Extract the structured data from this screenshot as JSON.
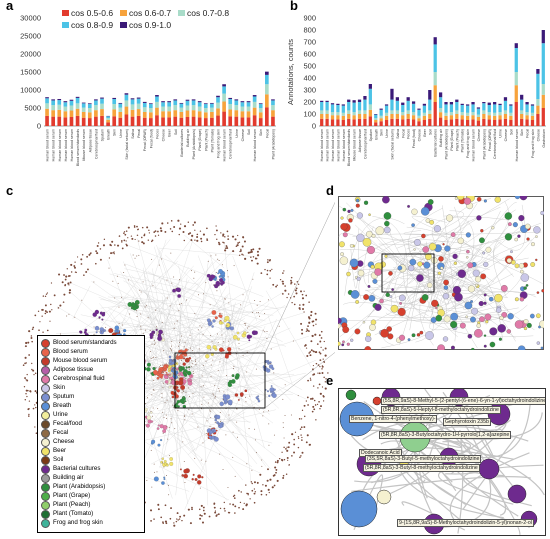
{
  "panels": {
    "a": "a",
    "b": "b",
    "c": "c",
    "d": "d",
    "e": "e"
  },
  "chart_a": {
    "legend": [
      {
        "label": "cos 0.5-0.6",
        "color": "#e23b2e"
      },
      {
        "label": "cos 0.6-0.7",
        "color": "#f7a33c"
      },
      {
        "label": "cos 0.7-0.8",
        "color": "#a9dcc9"
      },
      {
        "label": "cos 0.8-0.9",
        "color": "#4cc3e6"
      },
      {
        "label": "cos 0.9-1.0",
        "color": "#3b1a78"
      }
    ],
    "yticks": [
      "0",
      "5000",
      "10000",
      "15000",
      "20000",
      "25000",
      "30000"
    ]
  },
  "chart_b": {
    "ylabel": "Annotations, counts",
    "yticks": [
      "0",
      "100",
      "200",
      "300",
      "400",
      "500",
      "600",
      "700",
      "800",
      "900"
    ]
  },
  "chart_data": [
    {
      "type": "bar",
      "ylim": [
        0,
        30000
      ],
      "categories": [
        "Human blood serum",
        "Human blood serum",
        "Human blood serum",
        "Human blood serum",
        "Human blood serum",
        "Blood serum/standards",
        "Mouse blood serum",
        "Adipose tissue",
        "Cerebrospinal fluid",
        "Sputum",
        "Breath",
        "Skin",
        "Urine",
        "Skin (facial sebum)",
        "Saliva",
        "Fecal",
        "Fecal (OPAR)",
        "Fecal (food)",
        "Feces",
        "Cheese",
        "Beer",
        "Soil",
        "Bacterial cultures",
        "Building air",
        "Plant (Arabidopsis)",
        "Plant (Grape)",
        "Plant (Peach)",
        "Plant (Tomato)",
        "Frog and frog skin",
        "Human blood serum",
        "Cerebrospinal fluid",
        "Urine",
        "Cheese",
        "Soil",
        "Human blood serum",
        "Skin",
        "Fecal",
        "Plant (Arabidopsis)"
      ],
      "series": [
        {
          "name": "cos 0.5-0.6",
          "values": [
            2800,
            2600,
            2600,
            2400,
            2500,
            2800,
            2300,
            2200,
            2600,
            2800,
            1000,
            2700,
            2300,
            3200,
            2600,
            2800,
            2300,
            2200,
            3000,
            2400,
            2400,
            2600,
            2300,
            2500,
            2600,
            2400,
            2200,
            2300,
            2900,
            4000,
            2700,
            2600,
            2400,
            2400,
            3000,
            2200,
            5200,
            2600
          ]
        },
        {
          "name": "cos 0.6-0.7",
          "values": [
            2000,
            1800,
            1900,
            1700,
            1800,
            2000,
            1600,
            1600,
            1800,
            1900,
            700,
            1900,
            1600,
            2200,
            1900,
            1900,
            1600,
            1600,
            2100,
            1700,
            1700,
            1800,
            1600,
            1800,
            1800,
            1700,
            1600,
            1600,
            2000,
            2800,
            1900,
            1800,
            1700,
            1700,
            2100,
            1600,
            3600,
            1800
          ]
        },
        {
          "name": "cos 0.7-0.8",
          "values": [
            1500,
            1400,
            1400,
            1300,
            1400,
            1500,
            1200,
            1200,
            1400,
            1500,
            500,
            1500,
            1200,
            1700,
            1500,
            1500,
            1300,
            1200,
            1600,
            1300,
            1300,
            1400,
            1200,
            1400,
            1400,
            1300,
            1200,
            1200,
            1600,
            2200,
            1500,
            1400,
            1300,
            1300,
            1600,
            1200,
            2800,
            1400
          ]
        },
        {
          "name": "cos 0.8-0.9",
          "values": [
            1400,
            1300,
            1300,
            1200,
            1300,
            1500,
            1200,
            1100,
            1300,
            1400,
            500,
            1400,
            1100,
            1600,
            1400,
            1400,
            1200,
            1100,
            1500,
            1200,
            1200,
            1300,
            1100,
            1300,
            1300,
            1200,
            1100,
            1100,
            1500,
            2000,
            1400,
            1300,
            1200,
            1200,
            1500,
            1100,
            2600,
            1300
          ]
        },
        {
          "name": "cos 0.9-1.0",
          "values": [
            300,
            300,
            300,
            300,
            300,
            300,
            200,
            200,
            300,
            300,
            100,
            300,
            200,
            400,
            300,
            300,
            300,
            200,
            400,
            300,
            300,
            300,
            200,
            300,
            300,
            300,
            200,
            200,
            400,
            600,
            300,
            300,
            300,
            300,
            400,
            200,
            900,
            300
          ]
        }
      ]
    },
    {
      "type": "bar",
      "ylabel": "Annotations, counts",
      "ylim": [
        0,
        900
      ],
      "categories": [
        "Human blood serum",
        "Human blood serum",
        "Human blood serum",
        "Human blood serum",
        "Human blood serum",
        "Blood serum/standards",
        "Mouse blood serum",
        "Adipose tissue",
        "Cerebrospinal fluid",
        "Sputum",
        "Breath",
        "Skin",
        "Urine",
        "Skin (facial sebum)",
        "Saliva",
        "Fecal",
        "Feces",
        "Fecal (food)",
        "Cheese",
        "Beer",
        "Soil",
        "Bacterial cultures",
        "Building air",
        "Plant (Arabidopsis)",
        "Plant (Grape)",
        "Plant (Peach)",
        "Plant (Tomato)",
        "Frog and frog skin",
        "Human blood serum",
        "Cheese",
        "Plant (Arabidopsis)",
        "Fecal (OPAR)",
        "Cerebrospinal fluid",
        "Urine",
        "Cheese",
        "Soil",
        "Human blood serum",
        "Skin",
        "Fecal",
        "Frog and frog skin",
        "Cheese",
        "Gastrobium"
      ],
      "series": [
        {
          "name": "cos 0.5-0.6",
          "values": [
            60,
            60,
            55,
            55,
            50,
            60,
            55,
            60,
            60,
            80,
            30,
            40,
            50,
            60,
            60,
            55,
            60,
            55,
            40,
            50,
            60,
            200,
            70,
            50,
            55,
            60,
            55,
            50,
            55,
            45,
            60,
            55,
            50,
            55,
            60,
            50,
            200,
            60,
            55,
            50,
            100,
            150
          ]
        },
        {
          "name": "cos 0.6-0.7",
          "values": [
            40,
            40,
            35,
            35,
            35,
            40,
            35,
            40,
            40,
            55,
            20,
            25,
            35,
            40,
            40,
            35,
            40,
            35,
            25,
            35,
            40,
            140,
            45,
            35,
            35,
            40,
            35,
            35,
            35,
            30,
            40,
            35,
            35,
            35,
            40,
            35,
            140,
            40,
            35,
            35,
            70,
            110
          ]
        },
        {
          "name": "cos 0.7-0.8",
          "values": [
            30,
            30,
            25,
            25,
            25,
            30,
            25,
            30,
            30,
            45,
            15,
            20,
            25,
            30,
            30,
            25,
            30,
            25,
            20,
            25,
            30,
            110,
            35,
            25,
            25,
            30,
            25,
            25,
            25,
            20,
            30,
            25,
            25,
            25,
            30,
            25,
            110,
            30,
            25,
            25,
            55,
            90
          ]
        },
        {
          "name": "cos 0.8-0.9",
          "values": [
            70,
            70,
            65,
            60,
            60,
            70,
            80,
            70,
            90,
            130,
            30,
            50,
            60,
            90,
            80,
            60,
            80,
            70,
            50,
            60,
            90,
            230,
            90,
            70,
            65,
            70,
            60,
            60,
            65,
            50,
            60,
            60,
            70,
            60,
            80,
            60,
            200,
            90,
            65,
            60,
            210,
            340
          ]
        },
        {
          "name": "cos 0.9-1.0",
          "values": [
            10,
            10,
            10,
            10,
            10,
            20,
            20,
            20,
            30,
            40,
            5,
            10,
            10,
            90,
            30,
            20,
            30,
            20,
            10,
            15,
            80,
            60,
            40,
            20,
            20,
            20,
            10,
            10,
            20,
            10,
            10,
            20,
            20,
            10,
            30,
            10,
            40,
            40,
            20,
            10,
            40,
            110
          ]
        }
      ]
    }
  ],
  "legend_c": [
    {
      "label": "Blood serum/standards",
      "color": "#d6402e"
    },
    {
      "label": "Blood serum",
      "color": "#e8634a"
    },
    {
      "label": "Mouse blood serum",
      "color": "#c43a2a"
    },
    {
      "label": "Adipose tissue",
      "color": "#b55ea8"
    },
    {
      "label": "Cerebrospinal fluid",
      "color": "#e07aa8"
    },
    {
      "label": "Skin",
      "color": "#c9c7e8"
    },
    {
      "label": "Sputum",
      "color": "#7b8fd0"
    },
    {
      "label": "Breath",
      "color": "#5a8fd6"
    },
    {
      "label": "Urine",
      "color": "#f2ee9c"
    },
    {
      "label": "Fecal/food",
      "color": "#6b4a2b"
    },
    {
      "label": "Fecal",
      "color": "#8e6a45"
    },
    {
      "label": "Cheese",
      "color": "#f5f1d0"
    },
    {
      "label": "Beer",
      "color": "#f1e36a"
    },
    {
      "label": "Soil",
      "color": "#7a3b16"
    },
    {
      "label": "Bacterial cultures",
      "color": "#6e2a8e"
    },
    {
      "label": "Building air",
      "color": "#9b9b9b"
    },
    {
      "label": "Plant (Arabidopsis)",
      "color": "#2f8f3e"
    },
    {
      "label": "Plant (Grape)",
      "color": "#4fae4a"
    },
    {
      "label": "Plant (Peach)",
      "color": "#8fcf6a"
    },
    {
      "label": "Plant (Tomato)",
      "color": "#1f6f33"
    },
    {
      "label": "Frog and frog skin",
      "color": "#3fb39a"
    }
  ],
  "zoom_e_labels": [
    "(5S,8R,9aS)-8-Methyl-5-(2-pentyl-(6-ene)-6-yn-1-yl)octahydroindolizine",
    "(5R,8R,8aS)-5-Heptyl-8-methyloctahydroindolizine",
    "Benzene, 1-nitro-4-(phenylmethoxy)-",
    "Gephyrotoxin 235b",
    "(5R,8R,8aS)-3-Butyloctahydro-1H-pyrrolo[1,2-a]azepine",
    "Dodecanoic Acid",
    "(3S,5R,8aS)-3-Butyl-5-methyloctahydroindolizine",
    "(5R,8R,8aS)-3-Butyl-8-methyloctahydroindolizine",
    "9-(1S,8R,9aS)-8-Methyloctahydroindolizin-5-yl)nonan-2-ol"
  ]
}
